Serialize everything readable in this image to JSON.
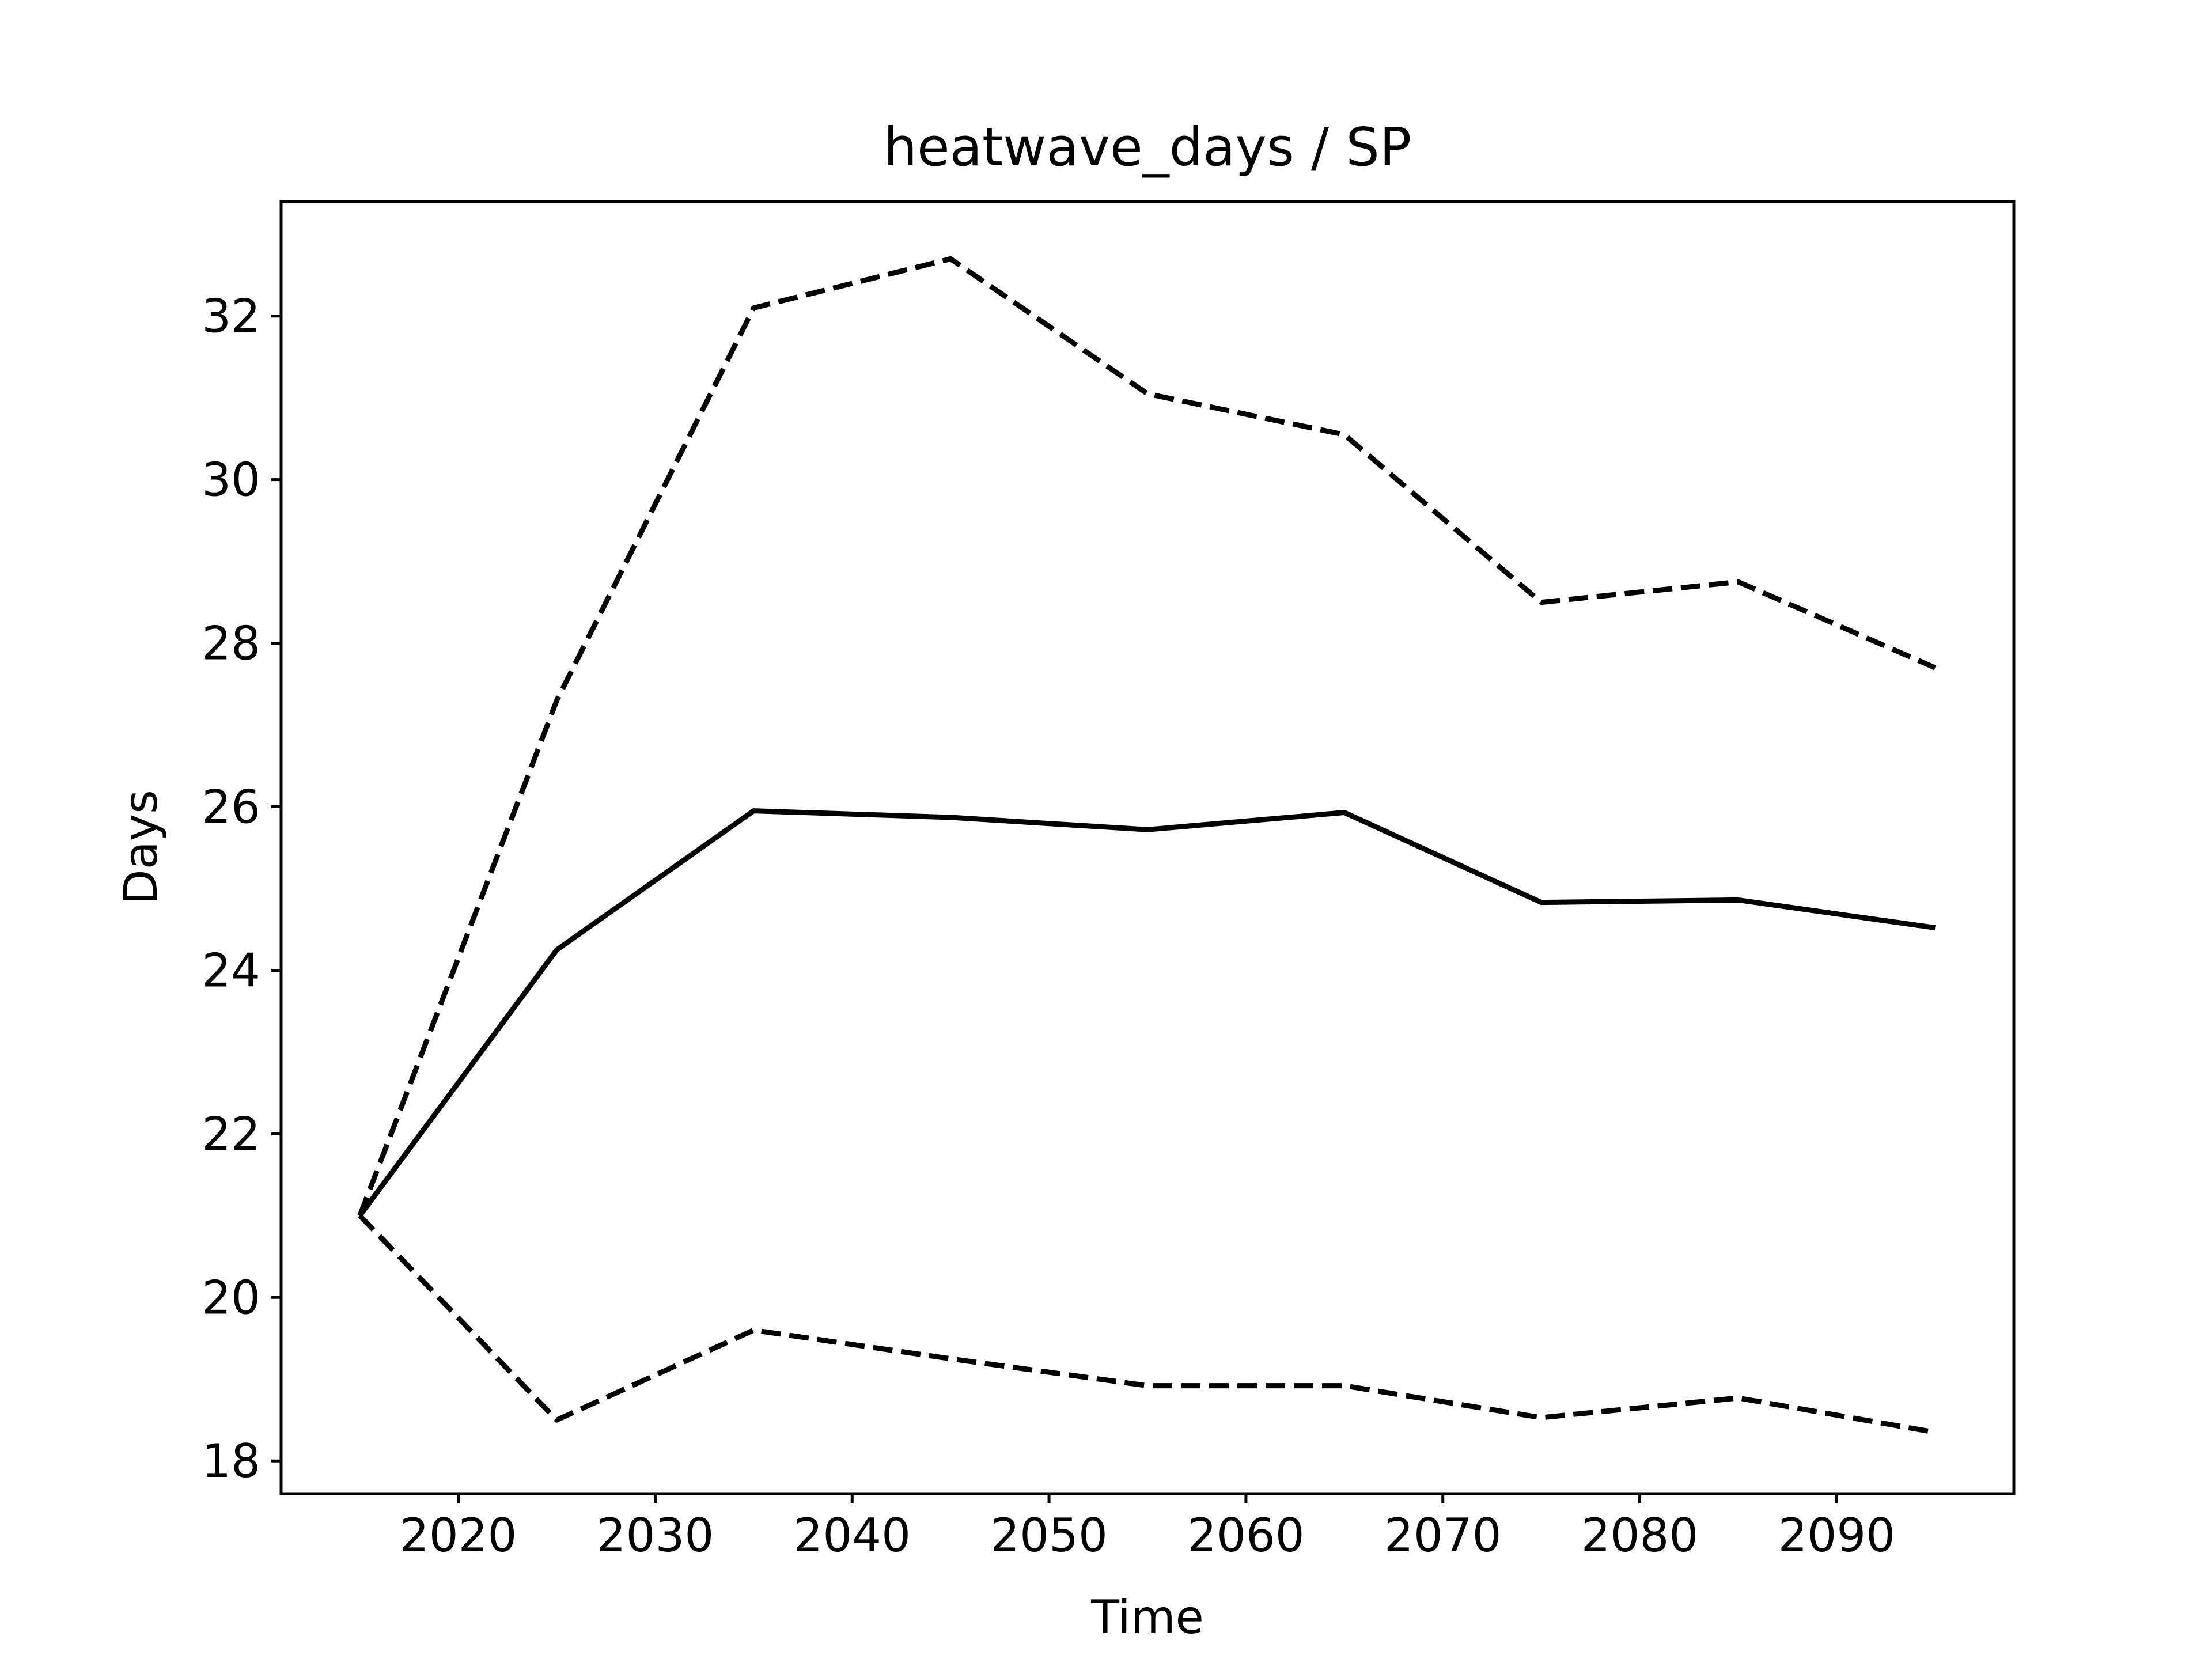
{
  "chart_data": {
    "type": "line",
    "title": "heatwave_days / SP",
    "xlabel": "Time",
    "ylabel": "Days",
    "xlim": [
      2011,
      2099
    ],
    "ylim": [
      17.6,
      33.4
    ],
    "xticks": [
      2020,
      2030,
      2040,
      2050,
      2060,
      2070,
      2080,
      2090
    ],
    "yticks": [
      18,
      20,
      22,
      24,
      26,
      28,
      30,
      32
    ],
    "grid": false,
    "legend": null,
    "x": [
      2015,
      2025,
      2035,
      2045,
      2055,
      2065,
      2075,
      2085,
      2095
    ],
    "series": [
      {
        "style": "solid",
        "color": "#000000",
        "values": [
          21.0,
          24.25,
          25.95,
          25.87,
          25.72,
          25.93,
          24.83,
          24.86,
          24.52
        ]
      },
      {
        "style": "dashed",
        "color": "#000000",
        "values": [
          21.0,
          27.3,
          32.1,
          32.7,
          31.05,
          30.55,
          28.5,
          28.75,
          27.7
        ]
      },
      {
        "style": "dashed",
        "color": "#000000",
        "values": [
          21.0,
          18.5,
          19.6,
          19.25,
          18.92,
          18.92,
          18.53,
          18.77,
          18.35
        ]
      }
    ]
  }
}
